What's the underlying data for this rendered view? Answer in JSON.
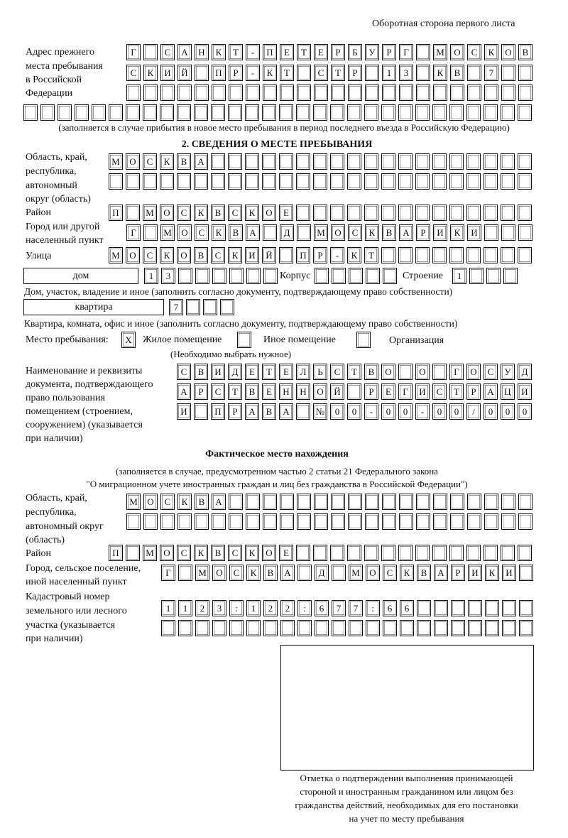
{
  "header": {
    "page_side": "Оборотная сторона первого листа"
  },
  "previous_address": {
    "label": [
      "Адрес прежнего",
      "места пребывания",
      "в Российской",
      "Федерации"
    ],
    "rows": [
      [
        "Г",
        "",
        "С",
        "А",
        "Н",
        "К",
        "Т",
        "-",
        "П",
        "Е",
        "Т",
        "Е",
        "Р",
        "Б",
        "У",
        "Р",
        "Г",
        "",
        "М",
        "О",
        "С",
        "К",
        "О",
        "В"
      ],
      [
        "С",
        "К",
        "И",
        "Й",
        "",
        "П",
        "Р",
        "-",
        "К",
        "Т",
        "",
        "С",
        "Т",
        "Р",
        "",
        "1",
        "3",
        "",
        "К",
        "В",
        "",
        "7",
        "",
        ""
      ],
      [
        "",
        "",
        "",
        "",
        "",
        "",
        "",
        "",
        "",
        "",
        "",
        "",
        "",
        "",
        "",
        "",
        "",
        "",
        "",
        "",
        "",
        "",
        "",
        ""
      ],
      [
        "",
        "",
        "",
        "",
        "",
        "",
        "",
        "",
        "",
        "",
        "",
        "",
        "",
        "",
        "",
        "",
        "",
        "",
        "",
        "",
        "",
        "",
        "",
        "",
        "",
        "",
        "",
        "",
        "",
        ""
      ]
    ],
    "note": "(заполняется в случае прибытия в новое место пребывания в период последнего въезда в Российскую Федерацию)"
  },
  "stay": {
    "title": "2. СВЕДЕНИЯ О МЕСТЕ ПРЕБЫВАНИЯ",
    "region_label": [
      "Область, край,",
      "республика,",
      "автономный",
      "округ (область)"
    ],
    "region_rows": [
      [
        "М",
        "О",
        "С",
        "К",
        "В",
        "А",
        "",
        "",
        "",
        "",
        "",
        "",
        "",
        "",
        "",
        "",
        "",
        "",
        "",
        "",
        "",
        "",
        "",
        "",
        ""
      ],
      [
        "",
        "",
        "",
        "",
        "",
        "",
        "",
        "",
        "",
        "",
        "",
        "",
        "",
        "",
        "",
        "",
        "",
        "",
        "",
        "",
        "",
        "",
        "",
        "",
        ""
      ]
    ],
    "district_label": "Район",
    "district_row": [
      "П",
      "",
      "М",
      "О",
      "С",
      "К",
      "В",
      "С",
      "К",
      "О",
      "Е",
      "",
      "",
      "",
      "",
      "",
      "",
      "",
      "",
      "",
      "",
      "",
      "",
      "",
      ""
    ],
    "city_label": [
      "Город или другой",
      "населенный пункт"
    ],
    "city_row": [
      "Г",
      "",
      "М",
      "О",
      "С",
      "К",
      "В",
      "А",
      "",
      "Д",
      "",
      "М",
      "О",
      "С",
      "К",
      "В",
      "А",
      "Р",
      "И",
      "К",
      "И",
      "",
      "",
      ""
    ],
    "street_label": "Улица",
    "street_row": [
      "М",
      "О",
      "С",
      "К",
      "О",
      "В",
      "С",
      "К",
      "И",
      "Й",
      "",
      "П",
      "Р",
      "-",
      "К",
      "Т",
      "",
      "",
      "",
      "",
      "",
      "",
      "",
      "",
      ""
    ],
    "house_type": "дом",
    "house_row": [
      "1",
      "3",
      "",
      "",
      "",
      "",
      "",
      ""
    ],
    "korpus_label": "Корпус",
    "korpus_row": [
      "",
      "",
      "",
      "",
      ""
    ],
    "building_label": "Строение",
    "building_row": [
      "1",
      "",
      "",
      ""
    ],
    "house_note": "Дом, участок, владение и иное (заполнить согласно документу, подтверждающему право собственности)",
    "flat_type": "квартира",
    "flat_row": [
      "7",
      "",
      "",
      ""
    ],
    "flat_note": "Квартира, комната, офис и иное (заполнить согласно документу, подтверждающему право собственности)",
    "place_label": "Место пребывания:",
    "options": [
      {
        "label": "Жилое помещение",
        "mark": "X"
      },
      {
        "label": "Иное помещение",
        "mark": ""
      },
      {
        "label": "Организация",
        "mark": ""
      }
    ],
    "options_note": "(Необходимо выбрать нужное)",
    "doc_label": [
      "Наименование и реквизиты",
      "документа, подтверждающего",
      "право пользования",
      "помещением (строением,",
      "сооружением) (указывается",
      "при наличии)"
    ],
    "doc_rows": [
      [
        "С",
        "В",
        "И",
        "Д",
        "Е",
        "Т",
        "Е",
        "Л",
        "Ь",
        "С",
        "Т",
        "В",
        "О",
        "",
        "О",
        "",
        "Г",
        "О",
        "С",
        "У",
        "Д"
      ],
      [
        "А",
        "Р",
        "С",
        "Т",
        "В",
        "Е",
        "Н",
        "Н",
        "О",
        "Й",
        "",
        "Р",
        "Е",
        "Г",
        "И",
        "С",
        "Т",
        "Р",
        "А",
        "Ц",
        "И"
      ],
      [
        "И",
        "",
        "П",
        "Р",
        "А",
        "В",
        "А",
        "",
        "№",
        "0",
        "0",
        "-",
        "0",
        "0",
        "-",
        "0",
        "0",
        "/",
        "0",
        "0",
        "0"
      ]
    ]
  },
  "actual": {
    "title": "Фактическое место нахождения",
    "note_lines": [
      "(заполняется в случае, предусмотренном частью 2 статьи 21 Федерального закона",
      "\"О миграционном учете иностранных граждан и лиц без гражданства в Российской Федерации\")"
    ],
    "region_label": [
      "Область, край,",
      "республика,",
      "автономный округ",
      "(область)"
    ],
    "region_rows": [
      [
        "М",
        "О",
        "С",
        "К",
        "В",
        "А",
        "",
        "",
        "",
        "",
        "",
        "",
        "",
        "",
        "",
        "",
        "",
        "",
        "",
        "",
        "",
        "",
        "",
        ""
      ],
      [
        "",
        "",
        "",
        "",
        "",
        "",
        "",
        "",
        "",
        "",
        "",
        "",
        "",
        "",
        "",
        "",
        "",
        "",
        "",
        "",
        "",
        "",
        "",
        ""
      ]
    ],
    "district_label": "Район",
    "district_row": [
      "П",
      "",
      "М",
      "О",
      "С",
      "К",
      "В",
      "С",
      "К",
      "О",
      "Е",
      "",
      "",
      "",
      "",
      "",
      "",
      "",
      "",
      "",
      "",
      "",
      "",
      "",
      ""
    ],
    "city_label": [
      "Город, сельское поселение,",
      "иной населенный пункт"
    ],
    "city_row": [
      "Г",
      "",
      "М",
      "О",
      "С",
      "К",
      "В",
      "А",
      "",
      "Д",
      "",
      "М",
      "О",
      "С",
      "К",
      "В",
      "А",
      "Р",
      "И",
      "К",
      "И",
      ""
    ],
    "cadastral_label": [
      "Кадастровый номер",
      "земельного или лесного",
      "участка (указывается",
      "при наличии)"
    ],
    "cadastral_rows": [
      [
        "1",
        "1",
        "2",
        "3",
        ":",
        "1",
        "2",
        "2",
        ":",
        "6",
        "7",
        "7",
        ":",
        "6",
        "6",
        "",
        "",
        "",
        "",
        "",
        "",
        ""
      ],
      [
        "",
        "",
        "",
        "",
        "",
        "",
        "",
        "",
        "",
        "",
        "",
        "",
        "",
        "",
        "",
        "",
        "",
        "",
        "",
        "",
        "",
        ""
      ]
    ]
  },
  "confirmation": {
    "caption": [
      "Отметка о подтверждении выполнения принимающей",
      "стороной и иностранным гражданином или лицом без",
      "гражданства действий, необходимых для его постановки",
      "на учет по месту пребывания"
    ]
  }
}
